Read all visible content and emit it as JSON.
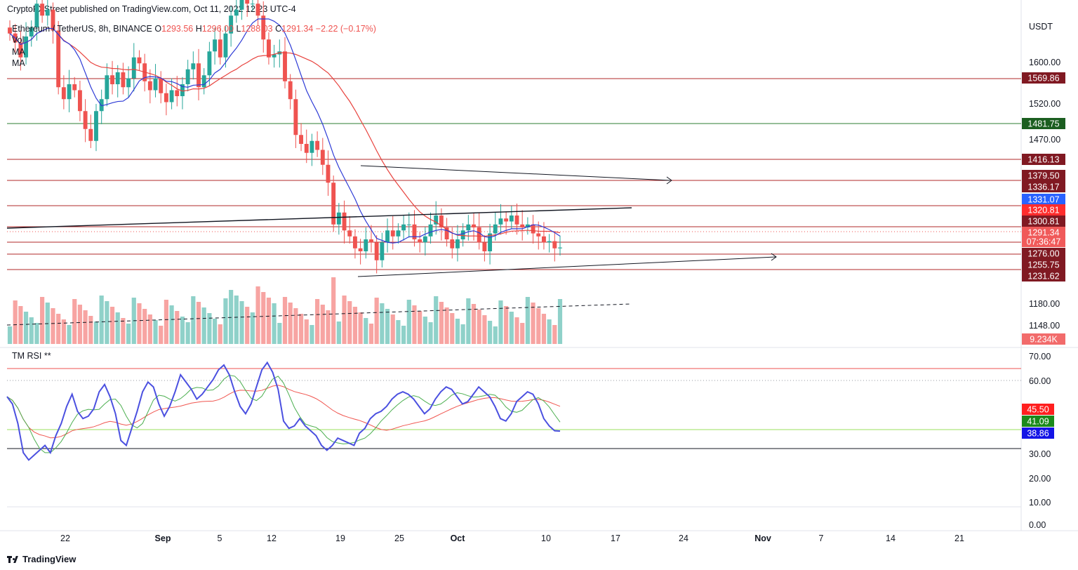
{
  "header": {
    "publisher": "CryptoFXStreet published on TradingView.com, Oct 11, 2022 12:23 UTC-4"
  },
  "footer": {
    "brand": "TradingView"
  },
  "legend": {
    "symbol": "Ethereum / TetherUS, 8h, BINANCE",
    "open_label": "O",
    "open": "1293.56",
    "high_label": "H",
    "high": "1296.00",
    "low_label": "L",
    "low": "1288.03",
    "close_label": "C",
    "close": "1291.34",
    "change": "−2.22 (−0.17%)",
    "vol": "Vol",
    "ma1": "MA",
    "ma2": "MA"
  },
  "rsi_title": "TM RSI **",
  "colors": {
    "up": "#26a69a",
    "down": "#ef5350",
    "vol_up": "#8fd1c9",
    "vol_down": "#f7a4a2",
    "sma_fast": "#2e3bd6",
    "sma_slow": "#e8423d",
    "resistance": "#b22a2a",
    "support": "#2e7d32",
    "rsi_line": "#4b50e0",
    "rsi_signal": "#4caf50",
    "rsi_slow": "#f05650"
  },
  "chart_data": [
    {
      "type": "candlestick",
      "timeframe": "8h",
      "x_ticks": [
        "22",
        "Sep",
        "5",
        "12",
        "19",
        "25",
        "Oct",
        "10",
        "17",
        "24",
        "Nov",
        "7",
        "14",
        "21"
      ],
      "y_ticks": [
        "1600.00",
        "1520.00",
        "1470.00",
        "1180.00",
        "1148.00"
      ],
      "y_axis_unit": "USDT",
      "levels": [
        {
          "label": "1569.86",
          "style": "resistance"
        },
        {
          "label": "1481.75",
          "style": "support"
        },
        {
          "label": "1416.13",
          "style": "resistance"
        },
        {
          "label": "1379.50",
          "style": "resistance"
        },
        {
          "label": "1336.17",
          "style": "resistance"
        },
        {
          "label": "1331.07",
          "style": "sma_fast"
        },
        {
          "label": "1320.81",
          "style": "sma_slow"
        },
        {
          "label": "1300.81",
          "style": "resistance"
        },
        {
          "label": "1291.34",
          "style": "price"
        },
        {
          "label": "07:36:47",
          "style": "price"
        },
        {
          "label": "1276.00",
          "style": "resistance"
        },
        {
          "label": "1255.75",
          "style": "resistance"
        },
        {
          "label": "1231.62",
          "style": "resistance"
        },
        {
          "label": "9.234K",
          "style": "volume"
        }
      ],
      "close_path": [
        1650,
        1635,
        1610,
        1645,
        1660,
        1700,
        1680,
        1690,
        1655,
        1560,
        1540,
        1565,
        1555,
        1520,
        1490,
        1470,
        1520,
        1540,
        1580,
        1565,
        1585,
        1560,
        1575,
        1610,
        1600,
        1570,
        1555,
        1575,
        1550,
        1535,
        1555,
        1545,
        1565,
        1590,
        1600,
        1560,
        1580,
        1620,
        1640,
        1610,
        1650,
        1680,
        1690,
        1720,
        1700,
        1700,
        1680,
        1640,
        1610,
        1615,
        1620,
        1570,
        1540,
        1480,
        1465,
        1450,
        1470,
        1455,
        1430,
        1400,
        1330,
        1350,
        1320,
        1310,
        1290,
        1285,
        1305,
        1300,
        1270,
        1300,
        1320,
        1310,
        1320,
        1330,
        1330,
        1305,
        1300,
        1310,
        1330,
        1345,
        1325,
        1305,
        1290,
        1305,
        1320,
        1330,
        1325,
        1300,
        1285,
        1315,
        1330,
        1340,
        1335,
        1345,
        1330,
        1325,
        1330,
        1315,
        1310,
        1300,
        1302,
        1290,
        1291.34
      ],
      "sma_fast_label": "MA",
      "sma_slow_label": "MA"
    },
    {
      "type": "line",
      "title": "TM RSI **",
      "y_ticks": [
        "70.00",
        "60.00",
        "30.00",
        "20.00",
        "10.00",
        "0.00"
      ],
      "levels": [
        {
          "label": "45.50",
          "style": "rsi_slow"
        },
        {
          "label": "41.09",
          "style": "rsi_signal"
        },
        {
          "label": "38.86",
          "style": "rsi_line"
        }
      ],
      "rsi": [
        53,
        50,
        42,
        30,
        27,
        29,
        31,
        33,
        30,
        37,
        42,
        49,
        54,
        47,
        44,
        45,
        48,
        55,
        58,
        53,
        46,
        35,
        33,
        40,
        47,
        55,
        59,
        57,
        50,
        45,
        49,
        55,
        62,
        59,
        56,
        52,
        54,
        57,
        60,
        64,
        66,
        62,
        55,
        49,
        46,
        50,
        57,
        64,
        67,
        63,
        56,
        43,
        40,
        41,
        44,
        41,
        39,
        37,
        33,
        31,
        33,
        36,
        35,
        34,
        33,
        38,
        40,
        44,
        46,
        47,
        49,
        52,
        54,
        55,
        54,
        52,
        49,
        46,
        48,
        52,
        55,
        57,
        56,
        53,
        50,
        51,
        54,
        57,
        55,
        53,
        49,
        44,
        43,
        46,
        51,
        53,
        55,
        54,
        50,
        44,
        41,
        39,
        38.86
      ]
    }
  ]
}
